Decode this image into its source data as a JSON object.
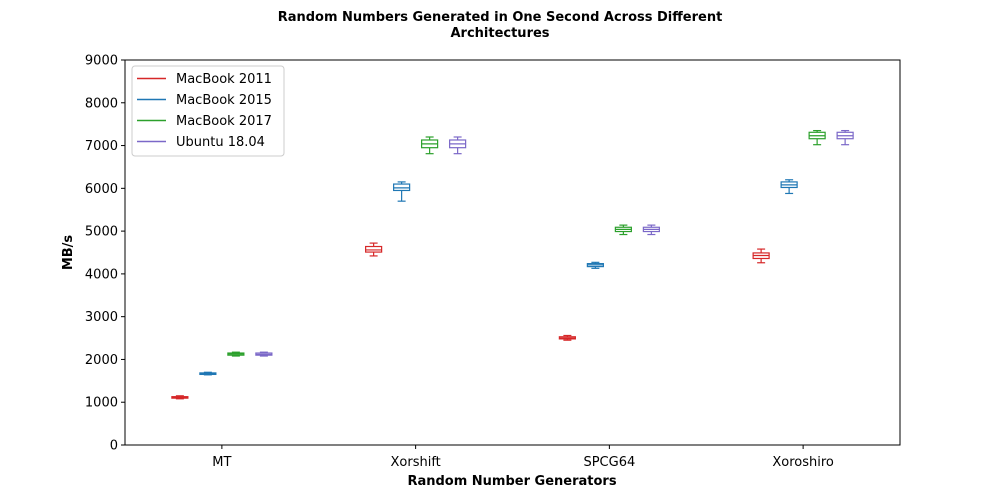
{
  "chart_data": {
    "type": "box",
    "title_lines": [
      "Random Numbers Generated in One Second Across Different",
      "Architectures"
    ],
    "xlabel": "Random Number Generators",
    "ylabel": "MB/s",
    "categories": [
      "MT",
      "Xorshift",
      "SPCG64",
      "Xoroshiro"
    ],
    "ylim": [
      0,
      9000
    ],
    "yticks": [
      0,
      1000,
      2000,
      3000,
      4000,
      5000,
      6000,
      7000,
      8000,
      9000
    ],
    "grid": false,
    "legend_position": "top-left",
    "series": [
      {
        "name": "MacBook 2011",
        "color": "#d62728",
        "boxes": [
          {
            "whisker_low": 1080,
            "q1": 1095,
            "median": 1110,
            "q3": 1130,
            "whisker_high": 1150
          },
          {
            "whisker_low": 4420,
            "q1": 4510,
            "median": 4560,
            "q3": 4640,
            "whisker_high": 4720
          },
          {
            "whisker_low": 2450,
            "q1": 2480,
            "median": 2500,
            "q3": 2530,
            "whisker_high": 2560
          },
          {
            "whisker_low": 4260,
            "q1": 4360,
            "median": 4430,
            "q3": 4490,
            "whisker_high": 4580
          }
        ]
      },
      {
        "name": "MacBook 2015",
        "color": "#1f77b4",
        "boxes": [
          {
            "whisker_low": 1640,
            "q1": 1660,
            "median": 1670,
            "q3": 1685,
            "whisker_high": 1700
          },
          {
            "whisker_low": 5700,
            "q1": 5950,
            "median": 6010,
            "q3": 6100,
            "whisker_high": 6150
          },
          {
            "whisker_low": 4130,
            "q1": 4170,
            "median": 4210,
            "q3": 4240,
            "whisker_high": 4270
          },
          {
            "whisker_low": 5880,
            "q1": 6020,
            "median": 6080,
            "q3": 6150,
            "whisker_high": 6200
          }
        ]
      },
      {
        "name": "MacBook 2017",
        "color": "#2ca02c",
        "boxes": [
          {
            "whisker_low": 2080,
            "q1": 2100,
            "median": 2130,
            "q3": 2150,
            "whisker_high": 2170
          },
          {
            "whisker_low": 6810,
            "q1": 6950,
            "median": 7040,
            "q3": 7130,
            "whisker_high": 7200
          },
          {
            "whisker_low": 4920,
            "q1": 4990,
            "median": 5040,
            "q3": 5090,
            "whisker_high": 5140
          },
          {
            "whisker_low": 7020,
            "q1": 7160,
            "median": 7230,
            "q3": 7310,
            "whisker_high": 7350
          }
        ]
      },
      {
        "name": "Ubuntu 18.04",
        "color": "#7b68c8",
        "boxes": [
          {
            "whisker_low": 2080,
            "q1": 2100,
            "median": 2120,
            "q3": 2150,
            "whisker_high": 2170
          },
          {
            "whisker_low": 6810,
            "q1": 6950,
            "median": 7040,
            "q3": 7130,
            "whisker_high": 7200
          },
          {
            "whisker_low": 4920,
            "q1": 4990,
            "median": 5040,
            "q3": 5090,
            "whisker_high": 5140
          },
          {
            "whisker_low": 7020,
            "q1": 7160,
            "median": 7230,
            "q3": 7310,
            "whisker_high": 7350
          }
        ]
      }
    ]
  }
}
